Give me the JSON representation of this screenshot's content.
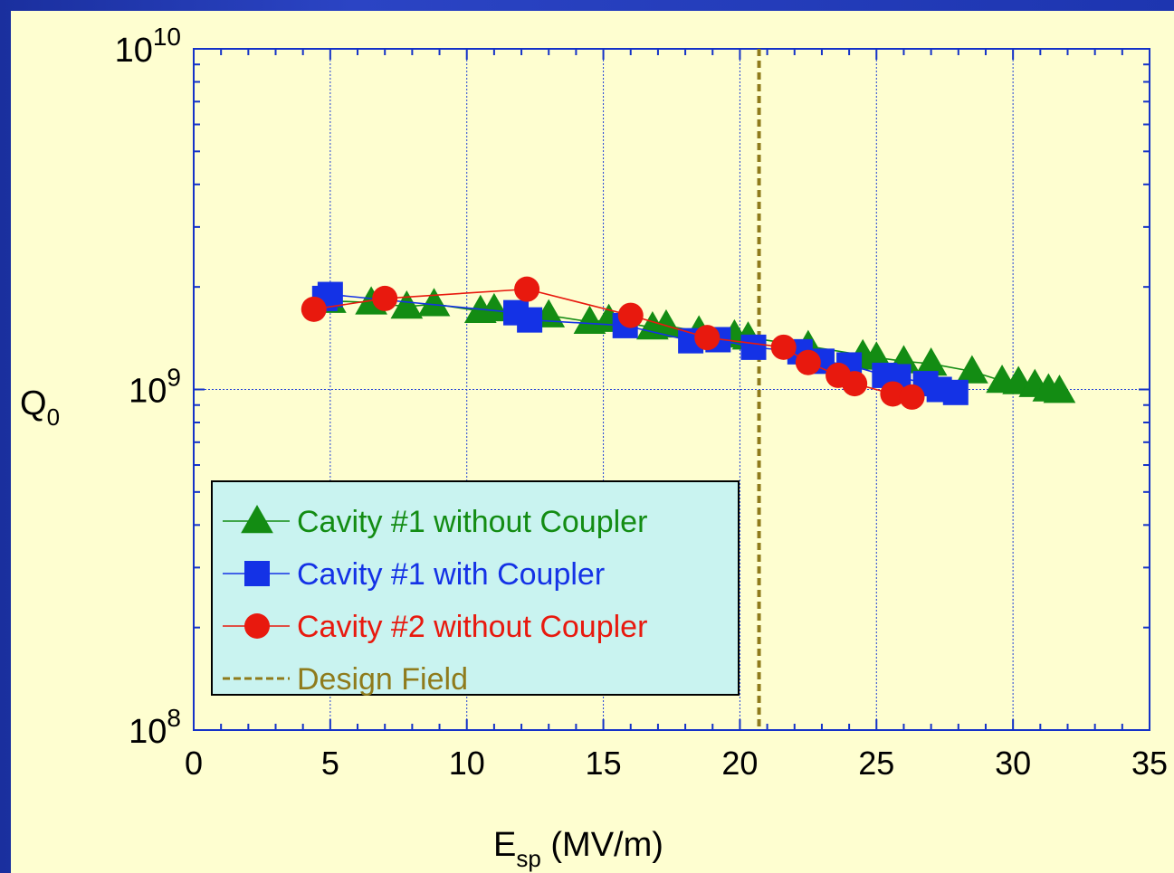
{
  "chart_data": {
    "type": "scatter",
    "x_axis": {
      "min": 0,
      "max": 35,
      "ticks": [
        "0",
        "5",
        "10",
        "15",
        "20",
        "25",
        "30",
        "35"
      ],
      "label_main": "E",
      "label_sub": "sp",
      "label_rest": " (MV/m)"
    },
    "y_axis": {
      "scale": "log",
      "min": 100000000,
      "max": 10000000000,
      "ticks": [
        {
          "value": 100000000,
          "base": "10",
          "exp": "8"
        },
        {
          "value": 1000000000,
          "base": "10",
          "exp": "9"
        },
        {
          "value": 10000000000,
          "base": "10",
          "exp": "10"
        }
      ],
      "label_main": "Q",
      "label_sub": "0"
    },
    "grid": true,
    "legend_position": "bottom-left",
    "series": [
      {
        "name": "Cavity #1 without Coupler",
        "marker": "triangle",
        "color": "#138c13",
        "x": [
          5.0,
          6.5,
          7.8,
          8.8,
          10.5,
          11.0,
          13.0,
          14.5,
          15.2,
          16.8,
          17.3,
          18.5,
          19.8,
          20.3,
          22.5,
          24.5,
          25.0,
          26.0,
          27.0,
          28.5,
          29.6,
          30.2,
          30.8,
          31.3,
          31.7
        ],
        "y": [
          1820000000,
          1800000000,
          1750000000,
          1780000000,
          1700000000,
          1720000000,
          1650000000,
          1580000000,
          1600000000,
          1520000000,
          1540000000,
          1480000000,
          1440000000,
          1420000000,
          1340000000,
          1260000000,
          1240000000,
          1210000000,
          1190000000,
          1130000000,
          1060000000,
          1050000000,
          1030000000,
          1000000000,
          990000000
        ]
      },
      {
        "name": "Cavity #1 with Coupler",
        "marker": "square",
        "color": "#1432e6",
        "x": [
          4.8,
          5.0,
          11.8,
          12.3,
          15.8,
          18.2,
          19.2,
          20.5,
          22.2,
          23.0,
          24.0,
          25.3,
          25.8,
          26.8,
          27.3,
          27.9
        ],
        "y": [
          1850000000,
          1900000000,
          1680000000,
          1600000000,
          1540000000,
          1390000000,
          1400000000,
          1330000000,
          1290000000,
          1210000000,
          1180000000,
          1100000000,
          1090000000,
          1040000000,
          1000000000,
          980000000
        ]
      },
      {
        "name": "Cavity #2 without Coupler",
        "marker": "circle",
        "color": "#e8190e",
        "x": [
          4.4,
          7.0,
          12.2,
          16.0,
          18.8,
          21.6,
          22.5,
          23.6,
          24.2,
          25.6,
          26.3
        ],
        "y": [
          1720000000,
          1850000000,
          1970000000,
          1650000000,
          1420000000,
          1330000000,
          1200000000,
          1100000000,
          1040000000,
          970000000,
          950000000
        ]
      },
      {
        "name": "Design Field",
        "marker": "dashed-line",
        "color": "#8f7b1c",
        "x_value": 20.7
      }
    ]
  }
}
